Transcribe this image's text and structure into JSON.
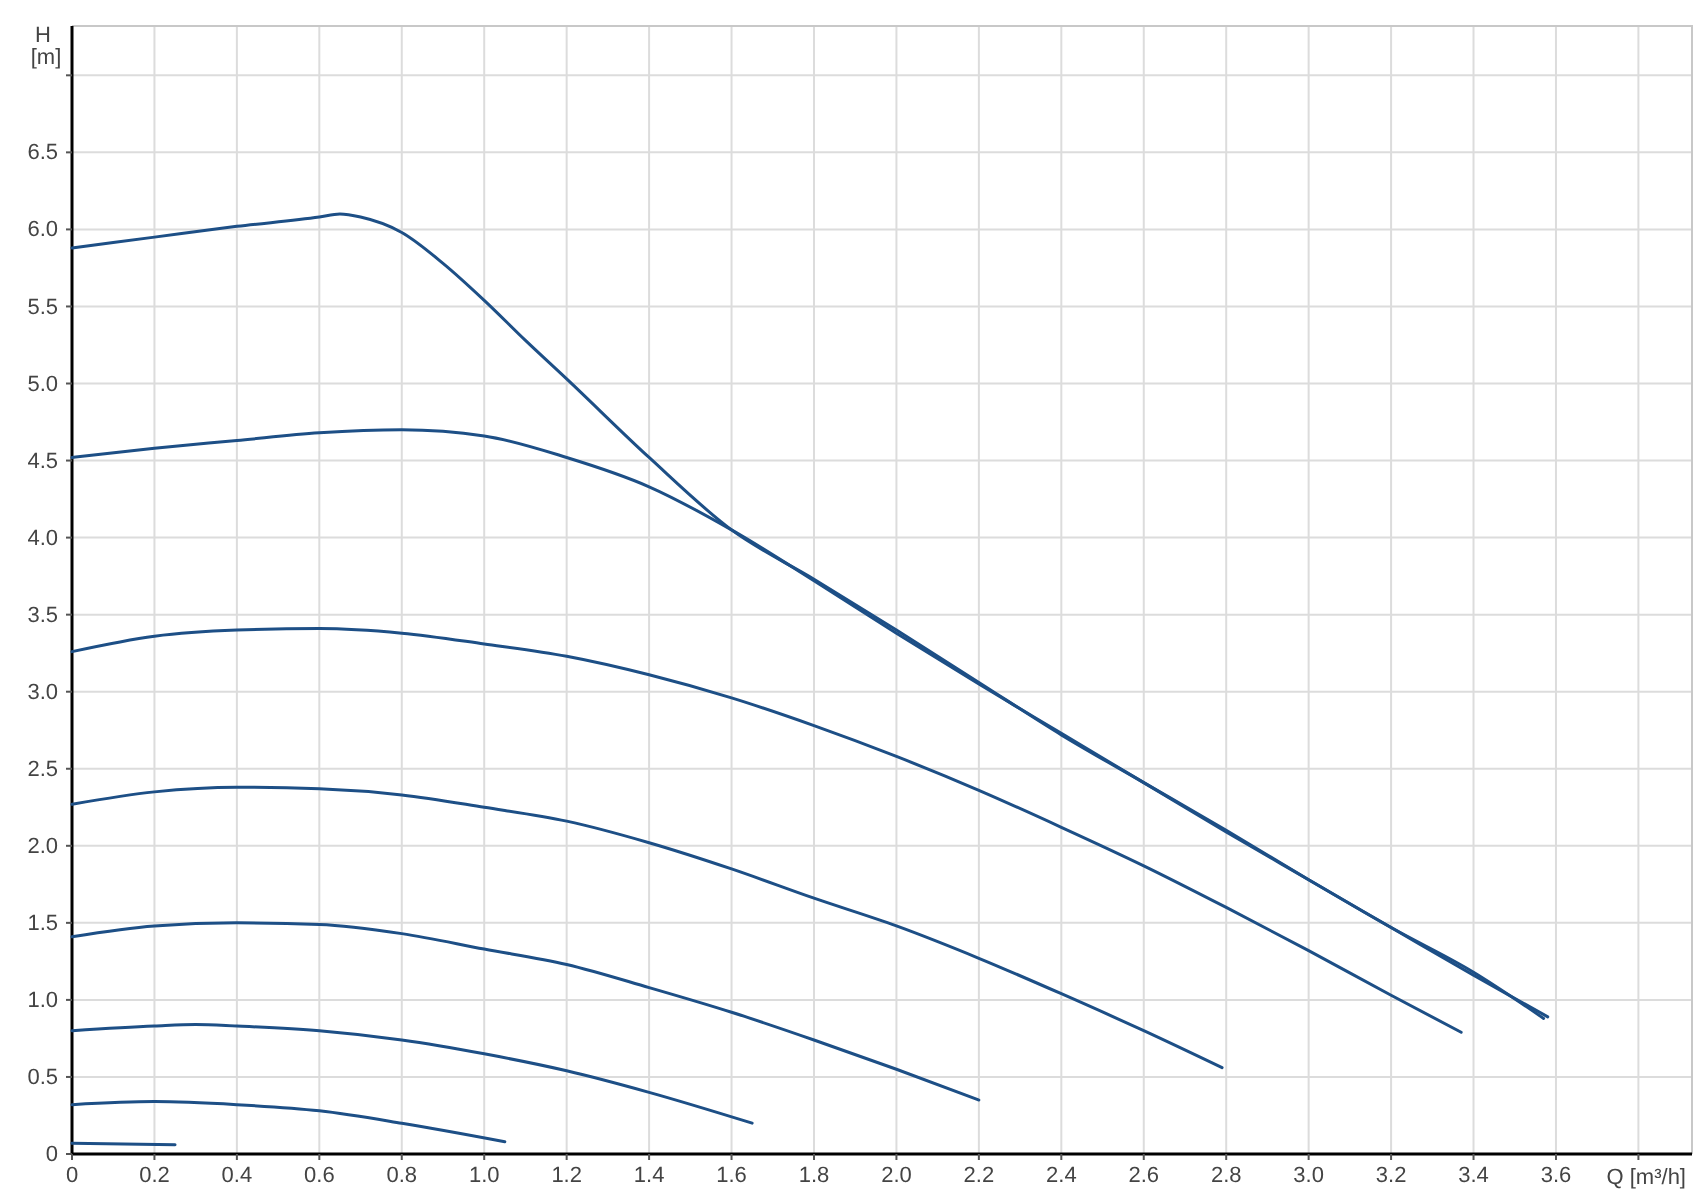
{
  "chart_data": {
    "type": "line",
    "xlabel": "Q [m³/h]",
    "ylabel": "H [m]",
    "xlim": [
      0,
      3.93
    ],
    "ylim": [
      0,
      7.32
    ],
    "xticks": [
      0,
      0.2,
      0.4,
      0.6,
      0.8,
      {
        "value": 1,
        "label": "1.0"
      },
      1.2,
      1.4,
      1.6,
      1.8,
      {
        "value": 2,
        "label": "2.0"
      },
      2.2,
      2.4,
      2.6,
      2.8,
      {
        "value": 3,
        "label": "3.0"
      },
      3.2,
      3.4,
      3.6,
      {
        "value": 3.8,
        "label": null
      }
    ],
    "yticks": [
      0,
      0.5,
      {
        "value": 1,
        "label": "1.0"
      },
      1.5,
      {
        "value": 2,
        "label": "2.0"
      },
      2.5,
      {
        "value": 3,
        "label": "3.0"
      },
      3.5,
      {
        "value": 4,
        "label": "4.0"
      },
      4.5,
      {
        "value": 5,
        "label": "5.0"
      },
      5.5,
      {
        "value": 6,
        "label": "6.0"
      },
      6.5,
      {
        "value": 7,
        "label": null
      }
    ],
    "grid": true,
    "series": [
      {
        "color": "#1d4f86",
        "x": [
          0,
          0.2,
          0.4,
          0.6,
          0.65,
          0.7,
          0.8,
          0.9,
          1.0,
          1.1,
          1.2,
          1.4,
          1.6,
          1.8,
          2.0,
          2.2,
          2.4,
          2.6,
          2.8,
          3.0,
          3.2,
          3.4,
          3.58
        ],
        "values": [
          5.88,
          5.95,
          6.02,
          6.08,
          6.1,
          6.08,
          5.98,
          5.78,
          5.54,
          5.28,
          5.03,
          4.52,
          4.05,
          3.73,
          3.4,
          3.06,
          2.72,
          2.41,
          2.1,
          1.78,
          1.47,
          1.16,
          0.89
        ]
      },
      {
        "color": "#1d4f86",
        "x": [
          0,
          0.2,
          0.4,
          0.6,
          0.8,
          1.0,
          1.2,
          1.4,
          1.6,
          1.8,
          2.0,
          2.2,
          2.4,
          2.6,
          2.8,
          3.0,
          3.2,
          3.4,
          3.57
        ],
        "values": [
          4.52,
          4.58,
          4.63,
          4.68,
          4.7,
          4.66,
          4.52,
          4.33,
          4.05,
          3.72,
          3.38,
          3.05,
          2.73,
          2.41,
          2.09,
          1.78,
          1.47,
          1.18,
          0.88
        ]
      },
      {
        "color": "#1d4f86",
        "x": [
          0,
          0.2,
          0.4,
          0.6,
          0.8,
          1.0,
          1.2,
          1.4,
          1.6,
          1.8,
          2.0,
          2.2,
          2.4,
          2.6,
          2.8,
          3.0,
          3.2,
          3.37
        ],
        "values": [
          3.26,
          3.36,
          3.4,
          3.41,
          3.38,
          3.31,
          3.23,
          3.11,
          2.96,
          2.78,
          2.58,
          2.36,
          2.12,
          1.87,
          1.6,
          1.32,
          1.03,
          0.79
        ]
      },
      {
        "color": "#1d4f86",
        "x": [
          0,
          0.2,
          0.4,
          0.6,
          0.8,
          1.0,
          1.2,
          1.4,
          1.6,
          1.8,
          2.0,
          2.2,
          2.4,
          2.6,
          2.79
        ],
        "values": [
          2.27,
          2.35,
          2.38,
          2.37,
          2.33,
          2.25,
          2.16,
          2.02,
          1.85,
          1.66,
          1.48,
          1.27,
          1.04,
          0.8,
          0.56
        ]
      },
      {
        "color": "#1d4f86",
        "x": [
          0,
          0.2,
          0.4,
          0.6,
          0.8,
          1.0,
          1.2,
          1.4,
          1.6,
          1.8,
          2.0,
          2.2
        ],
        "values": [
          1.41,
          1.48,
          1.5,
          1.49,
          1.43,
          1.33,
          1.23,
          1.08,
          0.92,
          0.74,
          0.55,
          0.35
        ]
      },
      {
        "color": "#1d4f86",
        "x": [
          0,
          0.2,
          0.3,
          0.4,
          0.6,
          0.8,
          1.0,
          1.2,
          1.4,
          1.65
        ],
        "values": [
          0.8,
          0.83,
          0.84,
          0.83,
          0.8,
          0.74,
          0.65,
          0.54,
          0.4,
          0.2
        ]
      },
      {
        "color": "#1d4f86",
        "x": [
          0,
          0.2,
          0.4,
          0.6,
          0.8,
          1.05
        ],
        "values": [
          0.32,
          0.34,
          0.32,
          0.28,
          0.2,
          0.08
        ]
      },
      {
        "color": "#1d4f86",
        "x": [
          0,
          0.25
        ],
        "values": [
          0.07,
          0.06
        ]
      }
    ]
  }
}
